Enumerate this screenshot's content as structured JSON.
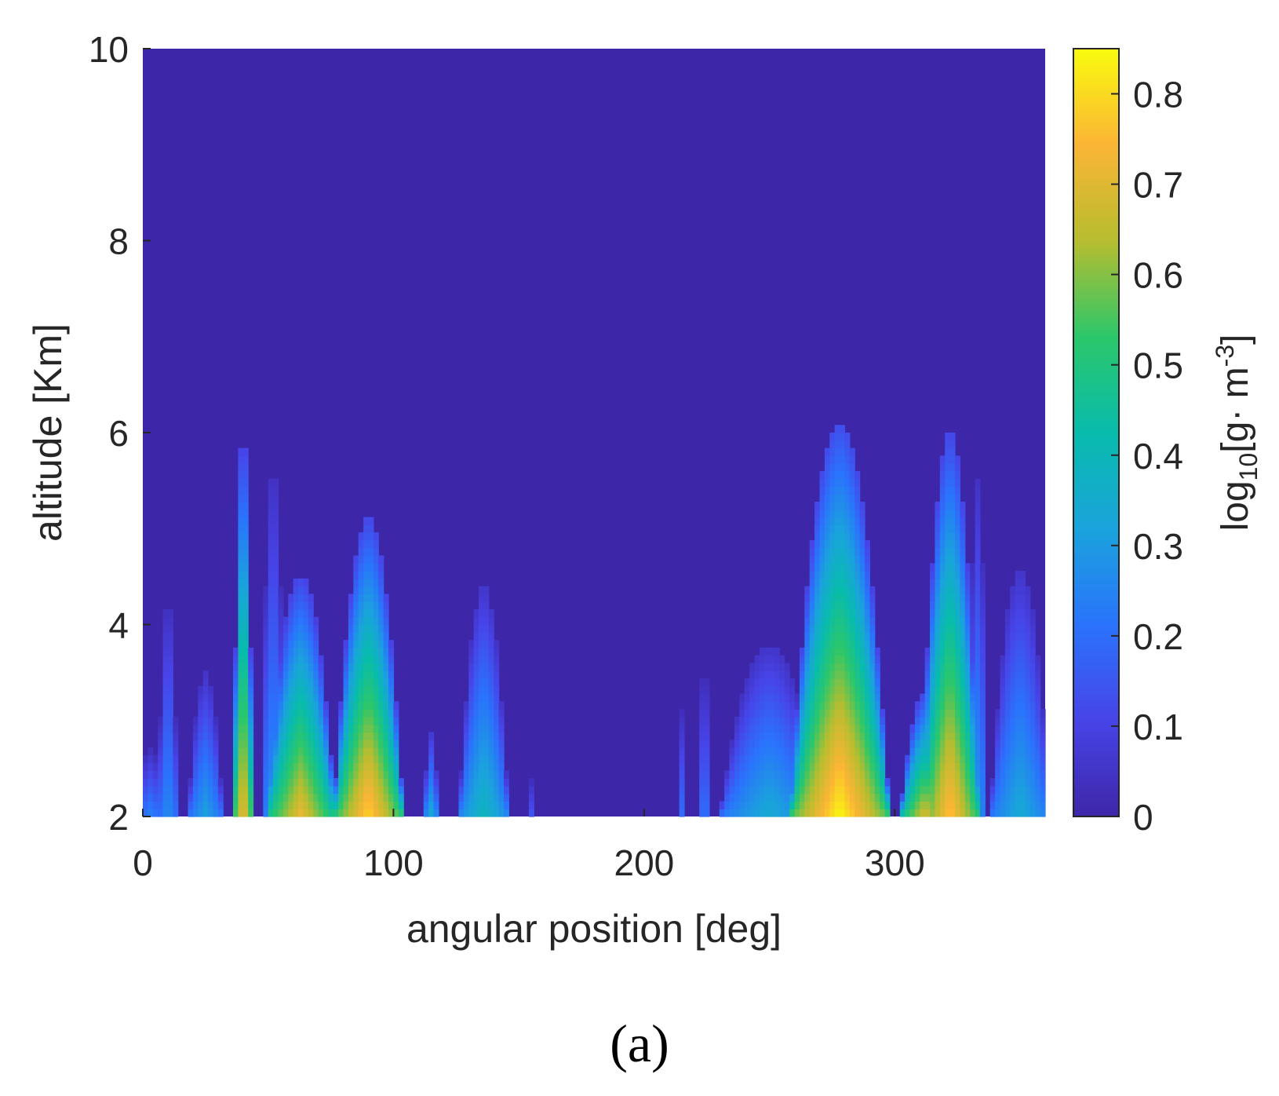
{
  "chart_data": {
    "type": "heatmap",
    "xlabel": "angular position [deg]",
    "ylabel": "altitude [Km]",
    "xlim": [
      0,
      360
    ],
    "ylim": [
      2,
      10
    ],
    "xticks": [
      0,
      100,
      200,
      300
    ],
    "yticks": [
      2,
      4,
      6,
      8,
      10
    ],
    "xtick_labels": [
      "0",
      "100",
      "200",
      "300"
    ],
    "ytick_labels": [
      "2",
      "4",
      "6",
      "8",
      "10"
    ],
    "colorbar": {
      "label_parts": [
        "log",
        "10",
        "[g",
        "·",
        " m",
        "-3",
        "]"
      ],
      "range": [
        0,
        0.85
      ],
      "ticks": [
        0,
        0.1,
        0.2,
        0.3,
        0.4,
        0.5,
        0.6,
        0.7,
        0.8
      ],
      "tick_labels": [
        "0",
        "0.1",
        "0.2",
        "0.3",
        "0.4",
        "0.5",
        "0.6",
        "0.7",
        "0.8"
      ],
      "colormap": "parula"
    },
    "background_value": 0.02,
    "features": [
      {
        "center_deg": 3,
        "half_width_deg": 6,
        "top_km": 2.7,
        "peak": 0.25
      },
      {
        "center_deg": 10,
        "half_width_deg": 4,
        "top_km": 4.3,
        "peak": 0.28
      },
      {
        "center_deg": 25,
        "half_width_deg": 7,
        "top_km": 3.5,
        "peak": 0.32
      },
      {
        "center_deg": 40,
        "half_width_deg": 4,
        "top_km": 6.1,
        "peak": 0.75
      },
      {
        "center_deg": 52,
        "half_width_deg": 5,
        "top_km": 5.7,
        "peak": 0.3
      },
      {
        "center_deg": 63,
        "half_width_deg": 14,
        "top_km": 4.5,
        "peak": 0.72
      },
      {
        "center_deg": 90,
        "half_width_deg": 14,
        "top_km": 5.1,
        "peak": 0.8
      },
      {
        "center_deg": 115,
        "half_width_deg": 3,
        "top_km": 2.9,
        "peak": 0.35
      },
      {
        "center_deg": 136,
        "half_width_deg": 10,
        "top_km": 4.4,
        "peak": 0.4
      },
      {
        "center_deg": 155,
        "half_width_deg": 2,
        "top_km": 2.4,
        "peak": 0.15
      },
      {
        "center_deg": 215,
        "half_width_deg": 2,
        "top_km": 3.1,
        "peak": 0.2
      },
      {
        "center_deg": 224,
        "half_width_deg": 3,
        "top_km": 3.6,
        "peak": 0.22
      },
      {
        "center_deg": 250,
        "half_width_deg": 20,
        "top_km": 3.8,
        "peak": 0.35
      },
      {
        "center_deg": 278,
        "half_width_deg": 20,
        "top_km": 6.1,
        "peak": 0.85
      },
      {
        "center_deg": 286,
        "half_width_deg": 8,
        "top_km": 3.6,
        "peak": 0.72
      },
      {
        "center_deg": 312,
        "half_width_deg": 10,
        "top_km": 3.3,
        "peak": 0.7
      },
      {
        "center_deg": 322,
        "half_width_deg": 12,
        "top_km": 6.0,
        "peak": 0.78
      },
      {
        "center_deg": 333,
        "half_width_deg": 4,
        "top_km": 5.5,
        "peak": 0.3
      },
      {
        "center_deg": 350,
        "half_width_deg": 12,
        "top_km": 4.6,
        "peak": 0.35
      }
    ]
  },
  "panel_label": "(a)"
}
